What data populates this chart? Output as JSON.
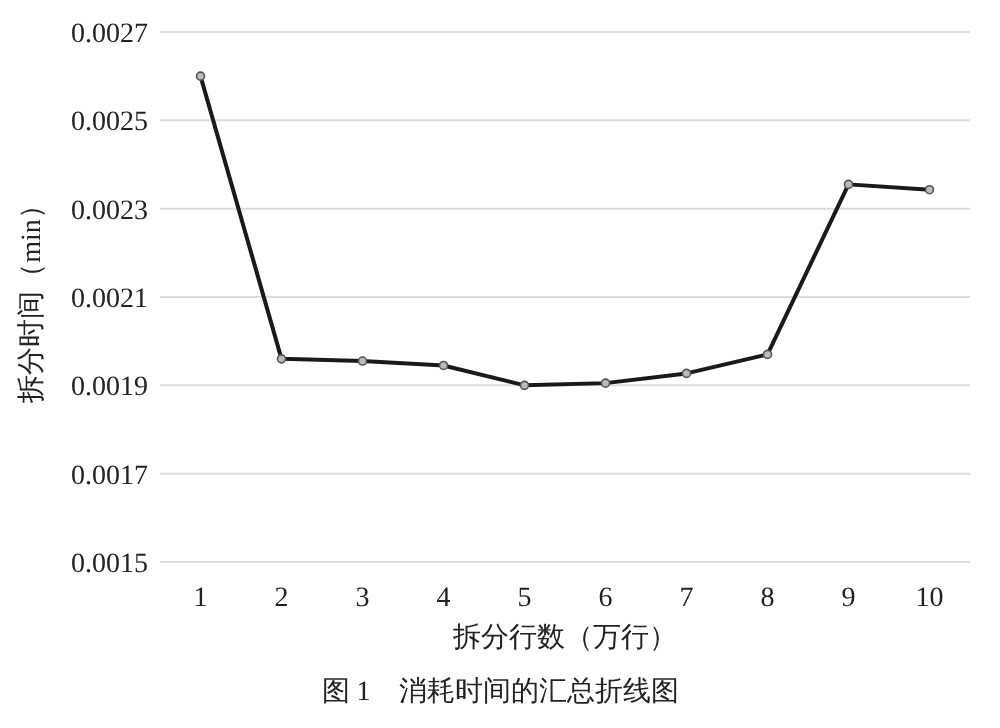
{
  "chart_data": {
    "type": "line",
    "xlabel": "拆分行数（万行）",
    "ylabel": "拆分时间（min）",
    "annotations": [
      "图 1　消耗时间的汇总折线图"
    ],
    "categories": [
      "1",
      "2",
      "3",
      "4",
      "5",
      "6",
      "7",
      "8",
      "9",
      "10"
    ],
    "series": [
      {
        "color": "#1a1a1a",
        "values": [
          0.0026,
          0.00196,
          0.001955,
          0.001945,
          0.0019,
          0.001905,
          0.001927,
          0.00197,
          0.002355,
          0.002343
        ]
      }
    ],
    "ylim": [
      0.0015,
      0.0027
    ],
    "yticks": [
      0.0015,
      0.0017,
      0.0019,
      0.0021,
      0.0023,
      0.0025,
      0.0027
    ],
    "grid": "y",
    "marker": "circle",
    "line_style": "solid"
  }
}
